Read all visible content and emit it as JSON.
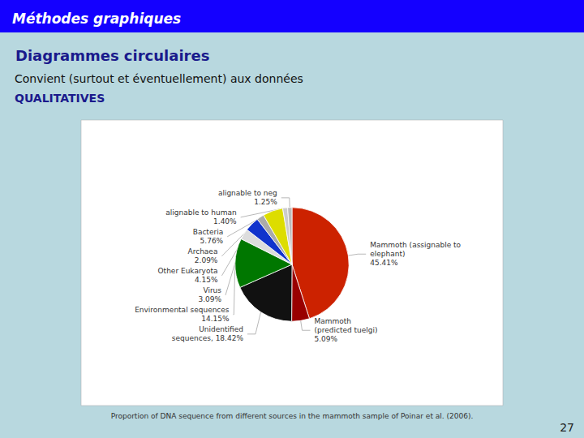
{
  "chart_data": {
    "type": "pie",
    "title": "Méthodes graphiques",
    "subtitle": "Diagrammes circulaires",
    "annotations": [
      "Convient (surtout et éventuellement) aux données",
      "QUALITATIVES",
      "Proportion of DNA sequence from different sources in the mammoth sample of Poinar et al. (2006).",
      "27"
    ],
    "categories": [
      "Mammoth (assignable to\nelephant)\n45.41%",
      "Mammoth\n(predicted tuelgi)\n5.09%",
      "Unidentified\nsequences, 18.42%",
      "Environmental sequences\n14.15%",
      "Virus\n3.09%",
      "Other Eukaryota\n4.15%",
      "Archaea\n2.09%",
      "Bacteria\n5.76%",
      "alignable to human\n1.40%",
      "alignable to neg\n1.25%"
    ],
    "values": [
      45.41,
      5.09,
      18.42,
      14.15,
      3.09,
      4.15,
      2.09,
      5.76,
      1.4,
      1.25
    ],
    "colors": [
      "#cc2200",
      "#990000",
      "#111111",
      "#007700",
      "#dddddd",
      "#1133cc",
      "#aaaaaa",
      "#dddd00",
      "#cccccc",
      "#bbbbbb"
    ],
    "data_labels": true,
    "legend": false
  }
}
